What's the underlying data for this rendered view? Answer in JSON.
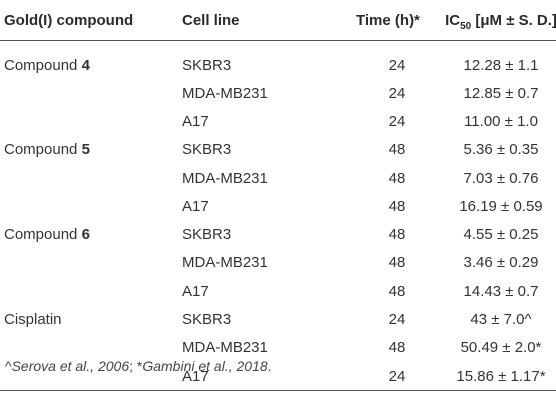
{
  "headers": {
    "compound": "Gold(I) compound",
    "cell_line": "Cell line",
    "time": "Time (h)*",
    "ic_prefix": "IC",
    "ic_sub": "50",
    "ic_suffix": " [μM ± S. D.]"
  },
  "groups": [
    {
      "prefix": "Compound ",
      "bold": "4",
      "rows": [
        {
          "cell": "SKBR3",
          "time": "24",
          "ic": "12.28 ± 1.1"
        },
        {
          "cell": "MDA-MB231",
          "time": "24",
          "ic": "12.85 ± 0.7"
        },
        {
          "cell": "A17",
          "time": "24",
          "ic": "11.00 ± 1.0"
        }
      ]
    },
    {
      "prefix": "Compound ",
      "bold": "5",
      "rows": [
        {
          "cell": "SKBR3",
          "time": "48",
          "ic": "5.36 ± 0.35"
        },
        {
          "cell": "MDA-MB231",
          "time": "48",
          "ic": "7.03 ± 0.76"
        },
        {
          "cell": "A17",
          "time": "48",
          "ic": "16.19 ± 0.59"
        }
      ]
    },
    {
      "prefix": "Compound ",
      "bold": "6",
      "rows": [
        {
          "cell": "SKBR3",
          "time": "48",
          "ic": "4.55 ± 0.25"
        },
        {
          "cell": "MDA-MB231",
          "time": "48",
          "ic": "3.46 ± 0.29"
        },
        {
          "cell": "A17",
          "time": "48",
          "ic": "14.43 ± 0.7"
        }
      ]
    },
    {
      "prefix": "Cisplatin",
      "bold": "",
      "rows": [
        {
          "cell": "SKBR3",
          "time": "24",
          "ic": "43 ± 7.0^"
        },
        {
          "cell": "MDA-MB231",
          "time": "48",
          "ic": "50.49 ± 2.0*"
        },
        {
          "cell": "A17",
          "time": "24",
          "ic": "15.86 ± 1.17*"
        }
      ]
    }
  ],
  "footnote": {
    "mark1": "^",
    "ref1": "Serova et al., 2006",
    "sep": "; *",
    "ref2": "Gambini et al., 2018",
    "end": "."
  }
}
